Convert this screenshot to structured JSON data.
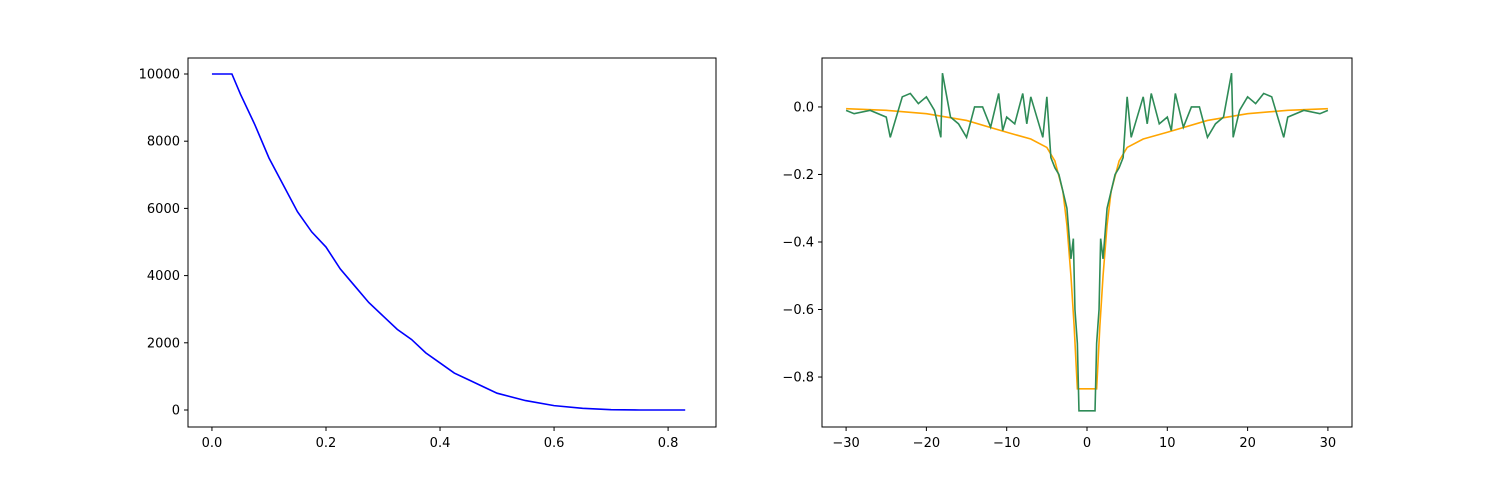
{
  "chart_data": [
    {
      "type": "line",
      "xlim": [
        -0.042,
        0.884
      ],
      "ylim": [
        -506,
        10476
      ],
      "xticks": [
        {
          "value": 0,
          "label": "0.0"
        },
        0.2,
        0.4,
        0.6,
        0.8
      ],
      "yticks": [
        0,
        2000,
        4000,
        6000,
        8000,
        10000
      ],
      "x": [
        0,
        0.025,
        0.035,
        0.05,
        0.075,
        0.1,
        0.125,
        0.15,
        0.175,
        0.2,
        0.225,
        0.25,
        0.275,
        0.3,
        0.325,
        0.35,
        0.375,
        0.4,
        0.425,
        0.45,
        0.475,
        0.5,
        0.55,
        0.6,
        0.65,
        0.7,
        0.75,
        0.83
      ],
      "series": [
        {
          "color": "#0000ff",
          "values": [
            10000,
            10000,
            10000,
            9400,
            8500,
            7500,
            6700,
            5900,
            5300,
            4850,
            4200,
            3700,
            3200,
            2800,
            2400,
            2100,
            1700,
            1400,
            1100,
            900,
            700,
            500,
            280,
            130,
            50,
            10,
            0,
            0
          ]
        }
      ]
    },
    {
      "type": "line",
      "xlim": [
        -33,
        33
      ],
      "ylim": [
        -0.948,
        0.145
      ],
      "xticks": [
        {
          "value": -30,
          "label": "−30"
        },
        {
          "value": -20,
          "label": "−20"
        },
        {
          "value": -10,
          "label": "−10"
        },
        0,
        10,
        20,
        30
      ],
      "yticks": [
        {
          "value": -0.8,
          "label": "−0.8"
        },
        {
          "value": -0.6,
          "label": "−0.6"
        },
        {
          "value": -0.4,
          "label": "−0.4"
        },
        {
          "value": -0.2,
          "label": "−0.2"
        },
        {
          "value": 0,
          "label": "0.0"
        }
      ],
      "series": [
        {
          "color": "#ffa500",
          "x": [
            -30,
            -25,
            -20,
            -15,
            -10,
            -7,
            -5,
            -4,
            -3,
            -2.5,
            -2,
            -1.6,
            -1.2,
            1.2,
            1.6,
            2,
            2.5,
            3,
            4,
            5,
            7,
            10,
            15,
            20,
            25,
            30
          ],
          "values": [
            -0.005,
            -0.01,
            -0.02,
            -0.04,
            -0.075,
            -0.095,
            -0.12,
            -0.16,
            -0.25,
            -0.35,
            -0.5,
            -0.65,
            -0.835,
            -0.835,
            -0.65,
            -0.5,
            -0.35,
            -0.25,
            -0.16,
            -0.12,
            -0.095,
            -0.075,
            -0.04,
            -0.02,
            -0.01,
            -0.005
          ]
        },
        {
          "color": "#2e8b57",
          "x": [
            -30,
            -29,
            -27,
            -25,
            -24.5,
            -23,
            -22,
            -21,
            -20,
            -19,
            -18.2,
            -18,
            -17,
            -16,
            -15,
            -14,
            -13,
            -12,
            -11,
            -10.5,
            -10,
            -9,
            -8,
            -7.5,
            -7,
            -6,
            -5.5,
            -5,
            -4.5,
            -4,
            -3.5,
            -3,
            -2.5,
            -2,
            -1.7,
            -1.5,
            -1.2,
            -1,
            1,
            1.2,
            1.5,
            1.7,
            2,
            2.5,
            3,
            3.5,
            4,
            4.5,
            5,
            5.5,
            6,
            7,
            7.5,
            8,
            9,
            10,
            10.5,
            11,
            12,
            13,
            14,
            15,
            16,
            17,
            18,
            18.2,
            19,
            20,
            21,
            22,
            23,
            24.5,
            25,
            27,
            29,
            30
          ],
          "values": [
            -0.01,
            -0.02,
            -0.01,
            -0.03,
            -0.09,
            0.03,
            0.04,
            0.01,
            0.03,
            -0.01,
            -0.09,
            0.1,
            -0.03,
            -0.05,
            -0.09,
            0,
            0,
            -0.06,
            0.04,
            -0.07,
            -0.03,
            -0.05,
            0.04,
            -0.05,
            0.03,
            -0.05,
            -0.09,
            0.03,
            -0.15,
            -0.18,
            -0.2,
            -0.25,
            -0.3,
            -0.45,
            -0.39,
            -0.6,
            -0.7,
            -0.9,
            -0.9,
            -0.7,
            -0.6,
            -0.39,
            -0.45,
            -0.3,
            -0.25,
            -0.2,
            -0.18,
            -0.15,
            0.03,
            -0.09,
            -0.05,
            0.03,
            -0.05,
            0.04,
            -0.05,
            -0.03,
            -0.07,
            0.04,
            -0.06,
            0,
            0,
            -0.09,
            -0.05,
            -0.03,
            0.1,
            -0.09,
            -0.01,
            0.03,
            0.01,
            0.04,
            0.03,
            -0.09,
            -0.03,
            -0.01,
            -0.02,
            -0.01
          ]
        }
      ]
    }
  ]
}
